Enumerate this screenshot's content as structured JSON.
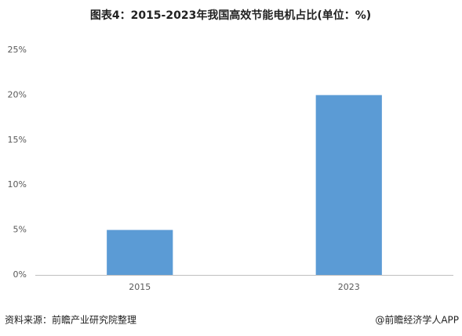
{
  "chart_data": {
    "type": "bar",
    "title": "图表4：2015-2023年我国高效节能电机占比(单位：%)",
    "categories": [
      "2015",
      "2023"
    ],
    "values": [
      5,
      20
    ],
    "color": "#5b9bd5",
    "ylim": [
      0,
      25
    ],
    "yticks": [
      {
        "value": 0,
        "label": "0%"
      },
      {
        "value": 5,
        "label": "5%"
      },
      {
        "value": 10,
        "label": "10%"
      },
      {
        "value": 15,
        "label": "15%"
      },
      {
        "value": 20,
        "label": "20%"
      },
      {
        "value": 25,
        "label": "25%"
      }
    ],
    "grid": false,
    "source": "资料来源：前瞻产业研究院整理",
    "credit": "@前瞻经济学人APP"
  }
}
